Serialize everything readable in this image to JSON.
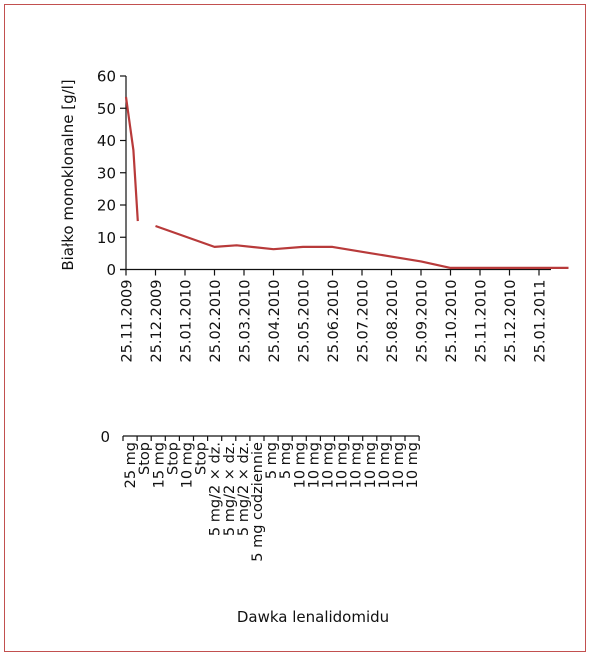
{
  "chart_data": {
    "type": "line",
    "title": "",
    "ylabel": "Białko monoklonalne [g/l]",
    "xlabel": "",
    "ylim": [
      0,
      60
    ],
    "yticks": [
      0,
      10,
      20,
      30,
      40,
      50,
      60
    ],
    "grid": false,
    "categories": [
      "25.11.2009",
      "25.12.2009",
      "25.01.2010",
      "25.02.2010",
      "25.03.2010",
      "25.04.2010",
      "25.05.2010",
      "25.06.2010",
      "25.07.2010",
      "25.08.2010",
      "25.09.2010",
      "25.10.2010",
      "25.11.2010",
      "25.12.2010",
      "25.01.2011"
    ],
    "series": [
      {
        "color": "#b83a3a",
        "segments": [
          [
            [
              0.0,
              53.5
            ],
            [
              0.25,
              37
            ],
            [
              0.4,
              15
            ]
          ],
          [
            [
              1.0,
              13.5
            ],
            [
              3.0,
              7
            ],
            [
              3.75,
              7.5
            ],
            [
              5.0,
              6.3
            ],
            [
              6.0,
              7
            ],
            [
              7.0,
              7
            ],
            [
              8.0,
              5.5
            ],
            [
              10.0,
              2.5
            ],
            [
              11.0,
              0.5
            ],
            [
              15.0,
              0.5
            ]
          ]
        ]
      }
    ],
    "dose_axis": {
      "xlabel": "Dawka lenalidomidu",
      "zero_label": "0",
      "labels": [
        "25 mg",
        "Stop",
        "15 mg",
        "Stop",
        "10 mg",
        "Stop",
        "5 mg/2 × dz.",
        "5 mg/2 × dz.",
        "5 mg/2 × dz.",
        "5 mg codziennie",
        "5 mg",
        "5 mg",
        "10 mg",
        "10 mg",
        "10 mg",
        "10 mg",
        "10 mg",
        "10 mg",
        "10 mg",
        "10 mg",
        "10 mg"
      ]
    }
  }
}
